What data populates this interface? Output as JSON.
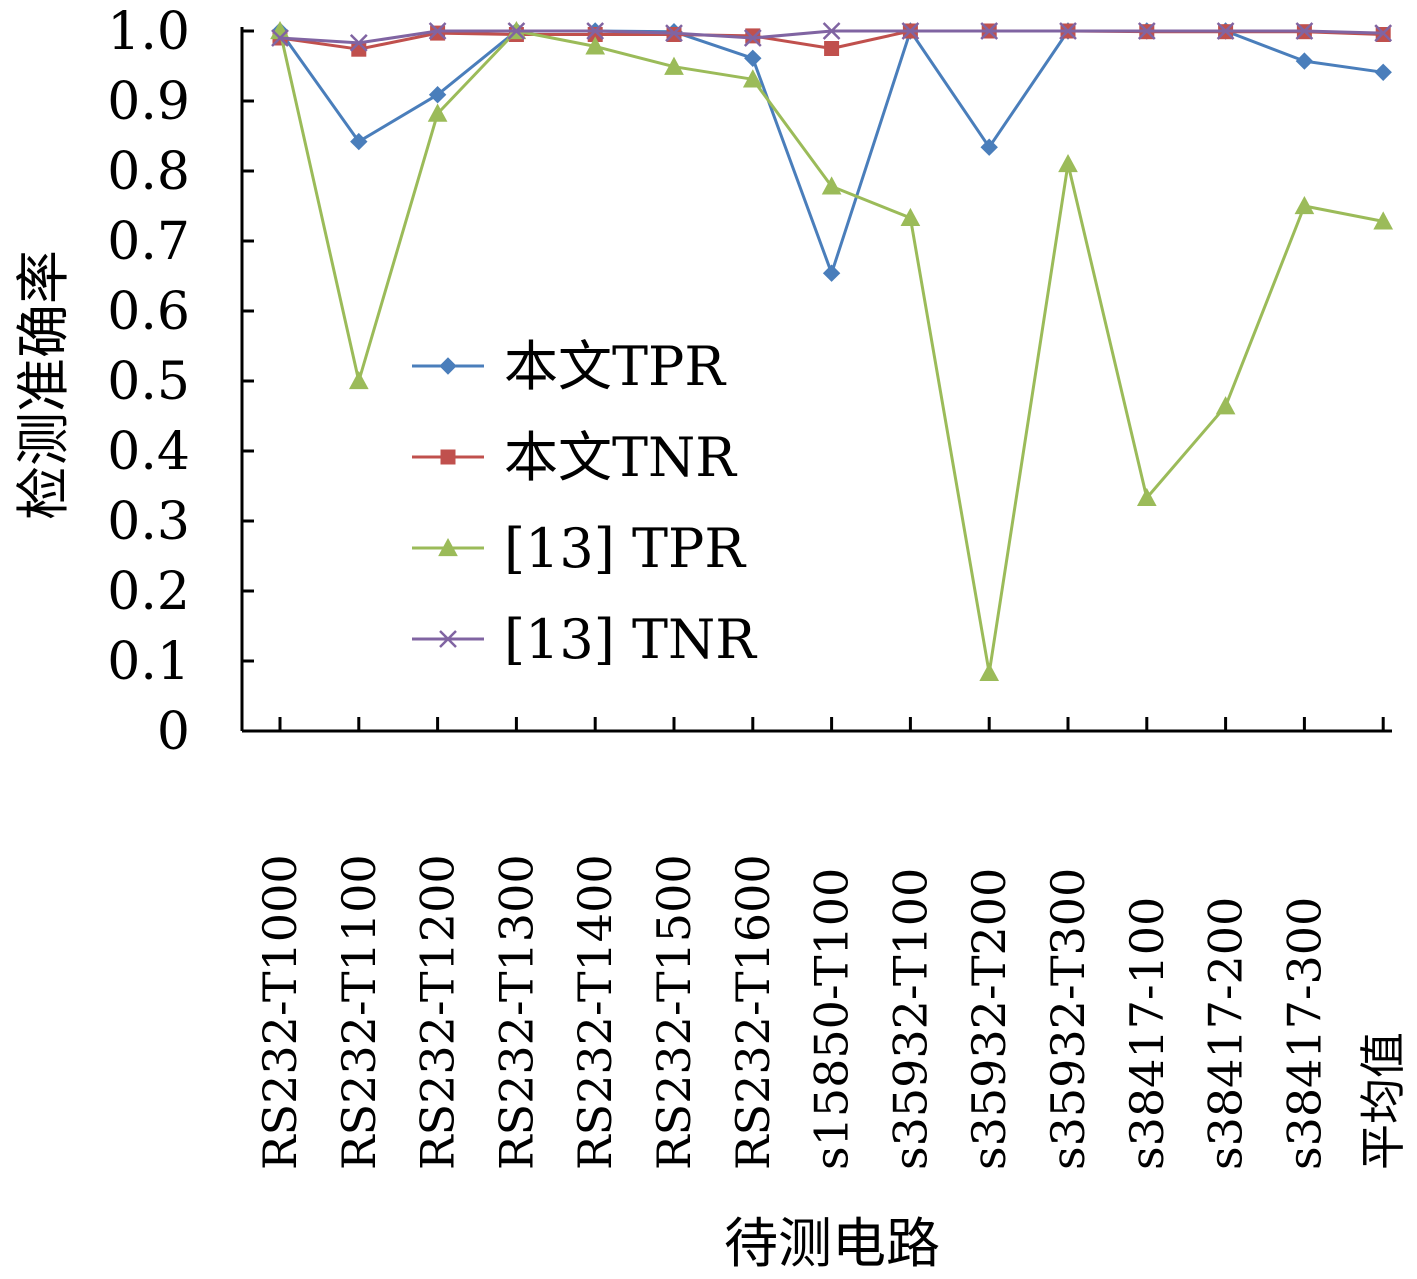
{
  "chart_data": {
    "type": "line",
    "xlabel": "待测电路",
    "ylabel": "检测准确率",
    "ylim": [
      0,
      1.0
    ],
    "yticks": [
      "0",
      "0.1",
      "0.2",
      "0.3",
      "0.4",
      "0.5",
      "0.6",
      "0.7",
      "0.8",
      "0.9",
      "1.0"
    ],
    "categories": [
      "RS232-T1000",
      "RS232-T1100",
      "RS232-T1200",
      "RS232-T1300",
      "RS232-T1400",
      "RS232-T1500",
      "RS232-T1600",
      "s15850-T100",
      "s35932-T100",
      "s35932-T200",
      "s35932-T300",
      "s38417-100",
      "s38417-200",
      "s38417-300",
      "平均值"
    ],
    "legend_position": "center-left",
    "series": [
      {
        "name": "本文TPR",
        "color": "#4a7ebb",
        "marker": "diamond",
        "values": [
          1.0,
          0.842,
          0.909,
          1.0,
          1.0,
          0.999,
          0.961,
          0.654,
          1.0,
          0.834,
          1.0,
          1.0,
          1.0,
          0.957,
          0.941
        ]
      },
      {
        "name": "本文TNR",
        "color": "#c0504d",
        "marker": "square",
        "values": [
          0.99,
          0.974,
          0.997,
          0.995,
          0.995,
          0.995,
          0.993,
          0.975,
          1.0,
          1.0,
          1.0,
          0.999,
          0.999,
          0.999,
          0.995
        ]
      },
      {
        "name": "[13] TPR",
        "color": "#9bbb59",
        "marker": "triangle",
        "values": [
          1.0,
          0.5,
          0.882,
          1.0,
          0.978,
          0.949,
          0.931,
          0.778,
          0.733,
          0.083,
          0.81,
          0.333,
          0.464,
          0.75,
          0.728
        ]
      },
      {
        "name": "[13] TNR",
        "color": "#8064a2",
        "marker": "x",
        "values": [
          0.99,
          0.983,
          1.0,
          1.0,
          1.0,
          0.997,
          0.99,
          1.0,
          1.0,
          1.0,
          1.0,
          1.0,
          1.0,
          1.0,
          0.997
        ]
      }
    ]
  }
}
